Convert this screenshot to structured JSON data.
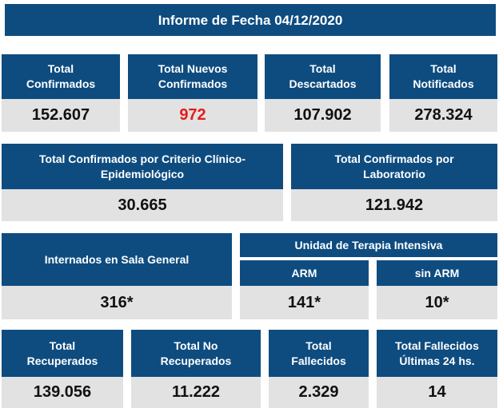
{
  "header": {
    "title": "Informe de Fecha 04/12/2020"
  },
  "cards": [
    {
      "label": [
        "Total",
        "Confirmados"
      ],
      "value": "152.607"
    },
    {
      "label": [
        "Total Nuevos",
        "Confirmados"
      ],
      "value": "972"
    },
    {
      "label": [
        "Total",
        "Descartados"
      ],
      "value": "107.902"
    },
    {
      "label": [
        "Total",
        "Notificados"
      ],
      "value": "278.324"
    },
    {
      "label": [
        "Total Confirmados por Criterio Clínico-",
        "Epidemiológico"
      ],
      "value": "30.665"
    },
    {
      "label": [
        "Total Confirmados por",
        "Laboratorio"
      ],
      "value": "121.942"
    },
    {
      "label": [
        "Internados en Sala General"
      ],
      "value": "316*"
    },
    {
      "label": [
        "ARM"
      ],
      "value": "141*"
    },
    {
      "label": [
        "sin ARM"
      ],
      "value": "10*"
    },
    {
      "label": [
        "Total",
        "Recuperados"
      ],
      "value": "139.056"
    },
    {
      "label": [
        "Total No",
        "Recuperados"
      ],
      "value": "11.222"
    },
    {
      "label": [
        "Total",
        "Fallecidos"
      ],
      "value": "2.329"
    },
    {
      "label": [
        "Total Fallecidos",
        "Últimas 24 hs."
      ],
      "value": "14"
    }
  ],
  "uti": {
    "title": "Unidad de Terapia Intensiva"
  }
}
